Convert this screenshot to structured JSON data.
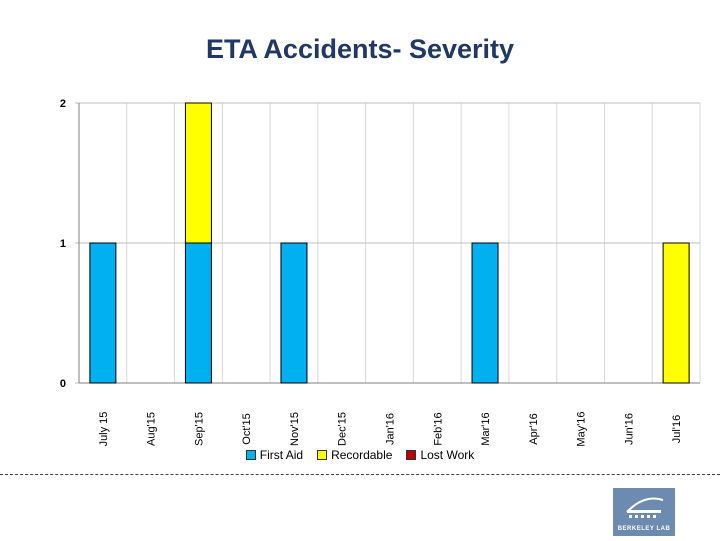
{
  "chart_data": {
    "type": "bar",
    "stacked": true,
    "title": "ETA Accidents-  Severity",
    "categories": [
      "July 15",
      "Aug'15",
      "Sep'15",
      "Oct'15",
      "Nov'15",
      "Dec'15",
      "Jan'16",
      "Feb'16",
      "Mar'16",
      "Apr'16",
      "May'16",
      "Jun'16",
      "Jul'16"
    ],
    "series": [
      {
        "name": "First Aid",
        "color": "#00b0f0",
        "values": [
          1,
          0,
          1,
          0,
          1,
          0,
          0,
          0,
          1,
          0,
          0,
          0,
          0
        ]
      },
      {
        "name": "Recordable",
        "color": "#ffff00",
        "values": [
          0,
          0,
          1,
          0,
          0,
          0,
          0,
          0,
          0,
          0,
          0,
          0,
          1
        ]
      },
      {
        "name": "Lost Work",
        "color": "#c00000",
        "values": [
          0,
          0,
          0,
          0,
          0,
          0,
          0,
          0,
          0,
          0,
          0,
          0,
          0
        ]
      }
    ],
    "ylim": [
      0,
      2
    ],
    "yticks": [
      "0",
      "1",
      "2"
    ],
    "xlabel": "",
    "ylabel": "",
    "grid": true,
    "legend": "bottom"
  },
  "logo": {
    "text": "BERKELEY LAB"
  }
}
